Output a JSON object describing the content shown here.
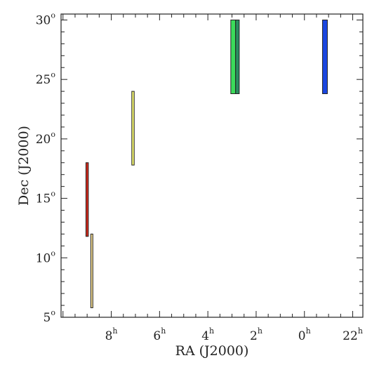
{
  "chart_data": {
    "type": "bar",
    "xlabel": "RA (J2000)",
    "ylabel": "Dec (J2000)",
    "x_unit": "h",
    "y_unit": "o",
    "x_ticks": [
      8,
      6,
      4,
      2,
      0,
      22
    ],
    "y_ticks": [
      5,
      10,
      15,
      20,
      25,
      30
    ],
    "xlim": [
      10.08,
      21.58
    ],
    "ylim": [
      5.0,
      30.5
    ],
    "x_reversed": true,
    "grid": false,
    "regions": [
      {
        "ra": [
          9.05,
          8.95
        ],
        "dec": [
          11.8,
          18.0
        ],
        "color": "#d42a1c"
      },
      {
        "ra": [
          8.85,
          8.8
        ],
        "dec": [
          5.8,
          12.0
        ],
        "color": "#f0d890"
      },
      {
        "ra": [
          7.15,
          7.05
        ],
        "dec": [
          17.8,
          24.0
        ],
        "color": "#eef070"
      },
      {
        "ra": [
          3.05,
          2.85
        ],
        "dec": [
          23.8,
          30.0
        ],
        "color": "#3cdc5a"
      },
      {
        "ra": [
          2.85,
          2.7
        ],
        "dec": [
          23.8,
          30.0
        ],
        "color": "#2a9060"
      },
      {
        "ra": [
          23.25,
          23.05
        ],
        "dec": [
          23.8,
          30.0
        ],
        "color": "#1a46e0"
      }
    ]
  }
}
